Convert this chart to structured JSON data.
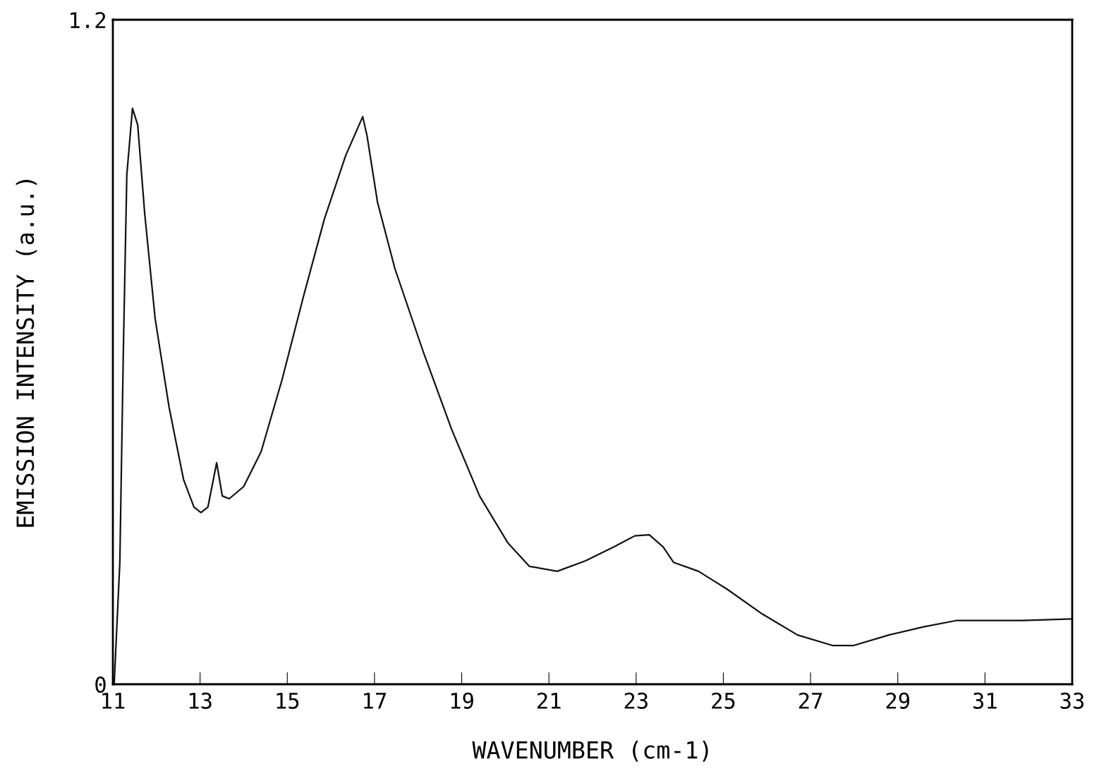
{
  "chart_data": {
    "type": "line",
    "xlabel": "WAVENUMBER (cm-1)",
    "ylabel": "EMISSION INTENSITY (a.u.)",
    "xlim": [
      11,
      33
    ],
    "xticks": [
      11,
      13,
      15,
      17,
      19,
      21,
      23,
      25,
      27,
      29,
      31,
      33
    ],
    "ylim": [
      0,
      1.2
    ],
    "yticks": [
      0,
      1.2
    ],
    "grid": false,
    "marker": "none",
    "line_style": "solid",
    "series": [
      {
        "color": "#111111",
        "x": [
          11.03,
          11.16,
          11.24,
          11.32,
          11.45,
          11.57,
          11.73,
          11.97,
          12.29,
          12.62,
          12.86,
          13.02,
          13.18,
          13.38,
          13.51,
          13.67,
          14.0,
          14.4,
          14.88,
          15.37,
          15.85,
          16.34,
          16.73,
          16.83,
          17.07,
          17.47,
          18.12,
          18.77,
          19.41,
          20.06,
          20.55,
          21.19,
          21.84,
          22.49,
          22.97,
          23.3,
          23.62,
          23.86,
          24.43,
          25.08,
          25.89,
          26.7,
          27.5,
          27.99,
          28.8,
          29.61,
          30.34,
          31.07,
          31.87,
          33.0
        ],
        "values": [
          0,
          0.22,
          0.6,
          0.92,
          1.04,
          1.01,
          0.85,
          0.66,
          0.5,
          0.37,
          0.32,
          0.31,
          0.32,
          0.4,
          0.34,
          0.335,
          0.357,
          0.42,
          0.55,
          0.7,
          0.84,
          0.955,
          1.025,
          0.99,
          0.87,
          0.75,
          0.6,
          0.46,
          0.34,
          0.255,
          0.213,
          0.204,
          0.223,
          0.248,
          0.268,
          0.27,
          0.248,
          0.22,
          0.204,
          0.172,
          0.127,
          0.089,
          0.07,
          0.07,
          0.089,
          0.104,
          0.115,
          0.115,
          0.115,
          0.118
        ]
      }
    ]
  }
}
